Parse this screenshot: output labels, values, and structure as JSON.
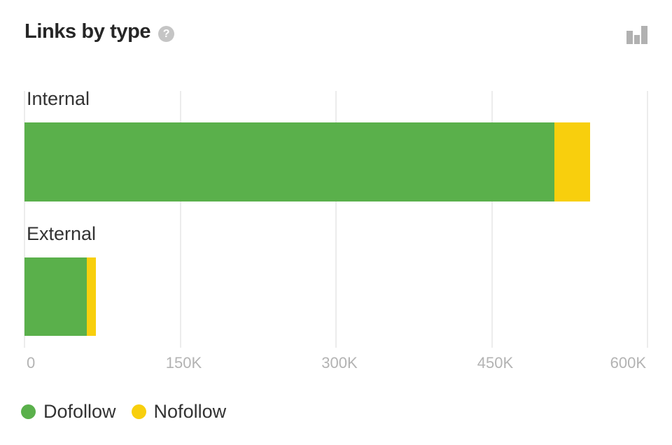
{
  "header": {
    "title": "Links by type",
    "help_glyph": "?"
  },
  "colors": {
    "dofollow_green": "#5ab04b",
    "nofollow_yellow": "#f8cf0d",
    "gridline": "#ececec",
    "tick_label": "#b3b3b3",
    "category_label": "#333333",
    "title_text": "#262626",
    "icon_gray": "#b1b1b1",
    "help_circle": "#c5c5c5"
  },
  "chart_data": {
    "type": "bar",
    "orientation": "horizontal",
    "stacked": true,
    "title": "Links by type",
    "categories": [
      "Internal",
      "External"
    ],
    "series": [
      {
        "name": "Dofollow",
        "color": "#5ab04b",
        "values": [
          510000,
          60000
        ]
      },
      {
        "name": "Nofollow",
        "color": "#f8cf0d",
        "values": [
          35000,
          9000
        ]
      }
    ],
    "x_ticks": [
      {
        "value": 0,
        "label": "0"
      },
      {
        "value": 150000,
        "label": "150K"
      },
      {
        "value": 300000,
        "label": "300K"
      },
      {
        "value": 450000,
        "label": "450K"
      },
      {
        "value": 600000,
        "label": "600K"
      }
    ],
    "xlim": [
      0,
      600000
    ],
    "grid": "vertical",
    "legend_position": "bottom"
  }
}
